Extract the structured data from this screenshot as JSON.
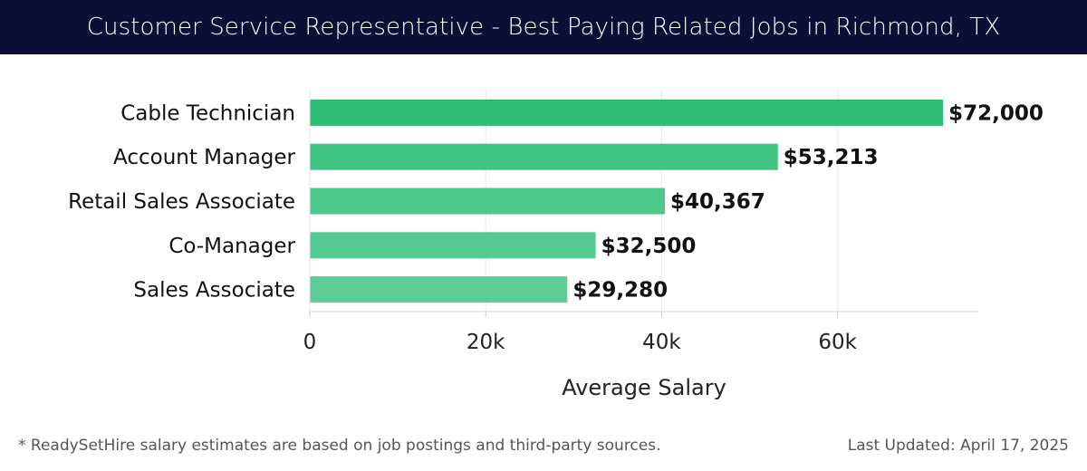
{
  "header": {
    "title": "Customer Service Representative - Best Paying Related Jobs in Richmond, TX"
  },
  "chart_data": {
    "type": "bar",
    "orientation": "horizontal",
    "categories": [
      "Cable Technician",
      "Account Manager",
      "Retail Sales Associate",
      "Co-Manager",
      "Sales Associate"
    ],
    "values": [
      72000,
      53213,
      40367,
      32500,
      29280
    ],
    "value_labels": [
      "$72,000",
      "$53,213",
      "$40,367",
      "$32,500",
      "$29,280"
    ],
    "xlabel": "Average Salary",
    "ylabel": "",
    "xlim": [
      0,
      76000
    ],
    "xticks": [
      0,
      20000,
      40000,
      60000
    ],
    "xtick_labels": [
      "0",
      "20k",
      "40k",
      "60k"
    ],
    "grid": true,
    "bar_colors": [
      "#2ebd74",
      "#40c483",
      "#4cc88b",
      "#55cb91",
      "#5ccd96"
    ]
  },
  "footer": {
    "note": "* ReadySetHire salary estimates are based on job postings and third-party sources.",
    "updated": "Last Updated: April 17, 2025"
  }
}
